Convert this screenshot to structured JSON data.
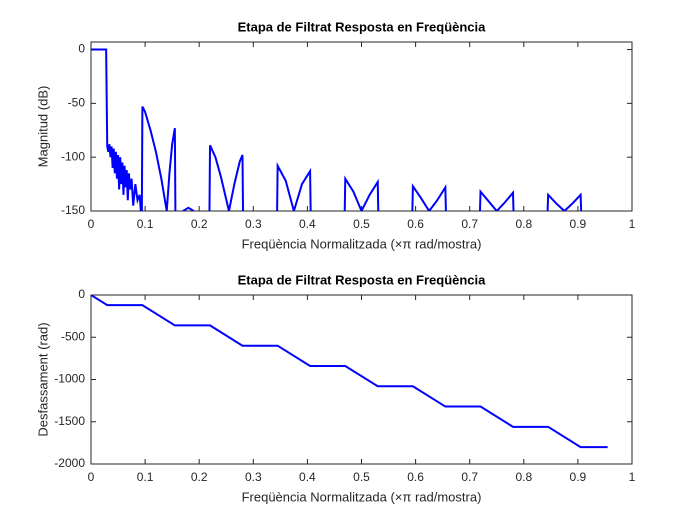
{
  "chart_data": [
    {
      "type": "line",
      "title": "Etapa de Filtrat Resposta en Freqüència",
      "x_label": "Freqüència Normalitzada (×π rad/mostra)",
      "y_label": "Magnitud (dB)",
      "xlim": [
        0,
        1
      ],
      "ylim": [
        -150,
        7
      ],
      "xticks": [
        0,
        0.1,
        0.2,
        0.3,
        0.4,
        0.5,
        0.6,
        0.7,
        0.8,
        0.9,
        1
      ],
      "yticks": [
        -150,
        -100,
        -50,
        0
      ],
      "series": [
        {
          "color": "#0000ff",
          "x": [
            0,
            0.028,
            0.03,
            0.032,
            0.034,
            0.036,
            0.038,
            0.04,
            0.042,
            0.044,
            0.046,
            0.048,
            0.05,
            0.052,
            0.054,
            0.056,
            0.058,
            0.06,
            0.062,
            0.064,
            0.066,
            0.068,
            0.07,
            0.072,
            0.075,
            0.078,
            0.082,
            0.086,
            0.09,
            0.092,
            0.094,
            0.095,
            0.1,
            0.11,
            0.12,
            0.13,
            0.14,
            0.145,
            0.15,
            0.155,
            0.156,
            0.16,
            0.17,
            0.18,
            0.19,
            0.2,
            0.219,
            0.22,
            0.23,
            0.24,
            0.255,
            0.265,
            0.275,
            0.28,
            0.281,
            0.3,
            0.344,
            0.345,
            0.36,
            0.375,
            0.39,
            0.405,
            0.406,
            0.44,
            0.469,
            0.47,
            0.485,
            0.5,
            0.515,
            0.53,
            0.531,
            0.56,
            0.594,
            0.595,
            0.61,
            0.625,
            0.64,
            0.655,
            0.656,
            0.69,
            0.719,
            0.72,
            0.735,
            0.75,
            0.765,
            0.78,
            0.781,
            0.81,
            0.844,
            0.845,
            0.86,
            0.875,
            0.89,
            0.905,
            0.906
          ],
          "values": [
            0,
            0,
            -90,
            -95,
            -88,
            -100,
            -90,
            -110,
            -92,
            -115,
            -95,
            -120,
            -98,
            -130,
            -100,
            -125,
            -105,
            -135,
            -108,
            -128,
            -112,
            -140,
            -115,
            -130,
            -120,
            -145,
            -125,
            -140,
            -135,
            -150,
            -150,
            -53,
            -58,
            -75,
            -95,
            -120,
            -150,
            -115,
            -88,
            -73,
            -150,
            null,
            -150,
            -147,
            -150,
            null,
            -150,
            -89,
            -100,
            -118,
            -150,
            -125,
            -104,
            -98,
            -150,
            null,
            -150,
            -108,
            -122,
            -150,
            -125,
            -113,
            -150,
            null,
            -150,
            -120,
            -132,
            -150,
            -135,
            -123,
            -150,
            null,
            -150,
            -127,
            -138,
            -150,
            -140,
            -128,
            -150,
            null,
            -150,
            -132,
            -141,
            -150,
            -142,
            -133,
            -150,
            null,
            -150,
            -135,
            -143,
            -150,
            -143,
            -135,
            -150
          ]
        }
      ]
    },
    {
      "type": "line",
      "title": "Etapa de Filtrat Resposta en Freqüència",
      "x_label": "Freqüència Normalitzada (×π rad/mostra)",
      "y_label": "Desfassament (rad)",
      "xlim": [
        0,
        1
      ],
      "ylim": [
        -2000,
        0
      ],
      "xticks": [
        0,
        0.1,
        0.2,
        0.3,
        0.4,
        0.5,
        0.6,
        0.7,
        0.8,
        0.9,
        1
      ],
      "yticks": [
        -2000,
        -1500,
        -1000,
        -500,
        0
      ],
      "series": [
        {
          "color": "#0000ff",
          "x": [
            0,
            0.03,
            0.095,
            0.155,
            0.22,
            0.28,
            0.345,
            0.405,
            0.47,
            0.53,
            0.595,
            0.655,
            0.72,
            0.78,
            0.845,
            0.905,
            0.955
          ],
          "values": [
            0,
            -120,
            -120,
            -360,
            -360,
            -600,
            -600,
            -840,
            -840,
            -1080,
            -1080,
            -1320,
            -1320,
            -1560,
            -1560,
            -1800,
            -1800
          ]
        }
      ]
    }
  ]
}
